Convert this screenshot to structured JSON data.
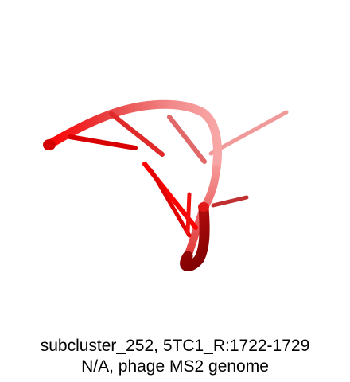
{
  "image": {
    "subject": "RNA backbone cartoon render",
    "colors": {
      "light": "#f28b8b",
      "mid": "#e83a3a",
      "bright": "#ff0000",
      "dark": "#7a0000",
      "background": "#ffffff"
    }
  },
  "caption": {
    "line1": "subcluster_252, 5TC1_R:1722-1729",
    "line2": "N/A, phage MS2 genome"
  }
}
